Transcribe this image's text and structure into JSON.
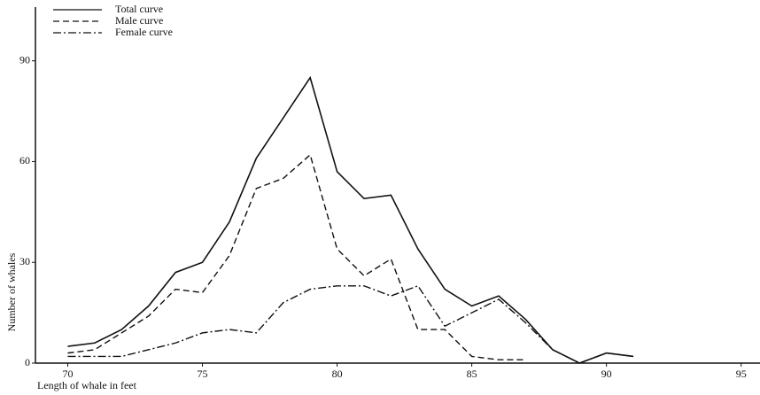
{
  "chart_data": {
    "type": "line",
    "xlabel": "Length of whale in feet",
    "ylabel": "Number of whales",
    "x": [
      70,
      71,
      72,
      73,
      74,
      75,
      76,
      77,
      78,
      79,
      80,
      81,
      82,
      83,
      84,
      85,
      86,
      87,
      88,
      89,
      90,
      91
    ],
    "series": [
      {
        "name": "Total curve",
        "color": "#111111",
        "dash": "solid",
        "values": [
          5,
          6,
          10,
          17,
          27,
          30,
          42,
          61,
          73,
          85,
          57,
          49,
          50,
          34,
          22,
          17,
          20,
          13,
          4,
          0,
          3,
          2
        ]
      },
      {
        "name": "Male curve",
        "color": "#111111",
        "dash": "dashed",
        "values": [
          3,
          4,
          9,
          14,
          22,
          21,
          32,
          52,
          55,
          62,
          34,
          26,
          31,
          10,
          10,
          2,
          1,
          1,
          null,
          null,
          null,
          null
        ]
      },
      {
        "name": "Female curve",
        "color": "#111111",
        "dash": "dashdot",
        "values": [
          2,
          2,
          2,
          4,
          6,
          9,
          10,
          9,
          18,
          22,
          23,
          23,
          20,
          23,
          11,
          15,
          19,
          12,
          4,
          0,
          3,
          2
        ]
      }
    ],
    "xlim": [
      68.8,
      95.7
    ],
    "xticks": [
      70,
      75,
      80,
      85,
      90,
      95
    ],
    "ylim": [
      0,
      106
    ],
    "yticks": [
      0,
      30,
      60,
      90
    ],
    "legend": "upper left"
  }
}
